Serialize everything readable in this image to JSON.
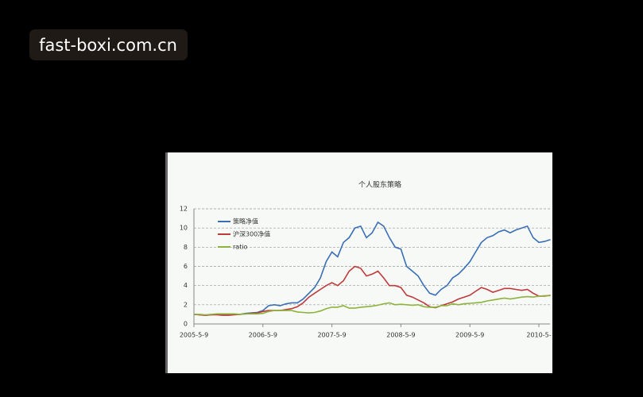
{
  "watermark": "fast-boxi.com.cn",
  "chart_data": {
    "type": "line",
    "title": "个人股东策略",
    "categories": [
      "2005-5-9",
      null,
      null,
      null,
      null,
      null,
      null,
      null,
      null,
      null,
      null,
      null,
      "2006-5-9",
      null,
      null,
      null,
      null,
      null,
      null,
      null,
      null,
      null,
      null,
      null,
      "2007-5-9",
      null,
      null,
      null,
      null,
      null,
      null,
      null,
      null,
      null,
      null,
      null,
      "2008-5-9",
      null,
      null,
      null,
      null,
      null,
      null,
      null,
      null,
      null,
      null,
      null,
      "2009-5-9",
      null,
      null,
      null,
      null,
      null,
      null,
      null,
      null,
      null,
      null,
      null,
      "2010-5-",
      null,
      null
    ],
    "series": [
      {
        "name": "策略净值",
        "color": "#3a6fb5",
        "values": [
          1.0,
          0.95,
          0.9,
          0.95,
          1.0,
          0.95,
          0.95,
          1.0,
          1.0,
          1.1,
          1.15,
          1.2,
          1.4,
          1.9,
          2.0,
          1.9,
          2.1,
          2.2,
          2.2,
          2.6,
          3.2,
          3.8,
          4.8,
          6.5,
          7.5,
          7.0,
          8.5,
          9.0,
          10.0,
          10.2,
          9.0,
          9.5,
          10.6,
          10.2,
          9.0,
          8.0,
          7.8,
          6.0,
          5.5,
          5.0,
          4.0,
          3.2,
          3.0,
          3.6,
          4.0,
          4.8,
          5.2,
          5.8,
          6.5,
          7.5,
          8.5,
          9.0,
          9.2,
          9.6,
          9.8,
          9.5,
          9.8,
          10.0,
          10.2,
          9.0,
          8.5,
          8.6,
          8.8
        ]
      },
      {
        "name": "沪深300净值",
        "color": "#c0393b",
        "values": [
          1.0,
          0.95,
          0.9,
          0.95,
          0.95,
          0.9,
          0.9,
          0.95,
          1.0,
          1.05,
          1.1,
          1.15,
          1.3,
          1.4,
          1.4,
          1.4,
          1.5,
          1.6,
          1.8,
          2.2,
          2.8,
          3.2,
          3.6,
          4.0,
          4.3,
          4.0,
          4.5,
          5.5,
          6.0,
          5.8,
          5.0,
          5.2,
          5.5,
          4.8,
          4.0,
          4.0,
          3.8,
          3.0,
          2.8,
          2.5,
          2.2,
          1.8,
          1.7,
          1.9,
          2.1,
          2.3,
          2.6,
          2.8,
          3.0,
          3.4,
          3.8,
          3.6,
          3.3,
          3.5,
          3.7,
          3.7,
          3.6,
          3.5,
          3.6,
          3.2,
          2.9,
          2.9,
          3.0
        ]
      },
      {
        "name": "ratio",
        "color": "#8db33a",
        "values": [
          1.0,
          1.0,
          0.95,
          1.0,
          1.05,
          1.05,
          1.05,
          1.05,
          1.0,
          1.05,
          1.05,
          1.05,
          1.1,
          1.3,
          1.4,
          1.4,
          1.4,
          1.4,
          1.25,
          1.2,
          1.15,
          1.2,
          1.35,
          1.6,
          1.75,
          1.75,
          1.9,
          1.65,
          1.65,
          1.75,
          1.8,
          1.85,
          1.95,
          2.1,
          2.2,
          2.0,
          2.05,
          2.0,
          1.95,
          2.0,
          1.8,
          1.75,
          1.75,
          1.9,
          1.9,
          2.1,
          2.0,
          2.1,
          2.15,
          2.2,
          2.25,
          2.4,
          2.5,
          2.6,
          2.7,
          2.6,
          2.7,
          2.8,
          2.85,
          2.8,
          2.9,
          2.95,
          2.95
        ]
      }
    ],
    "ylim": [
      0,
      12
    ],
    "yticks": [
      0,
      2,
      4,
      6,
      8,
      10,
      12
    ],
    "grid": true
  }
}
